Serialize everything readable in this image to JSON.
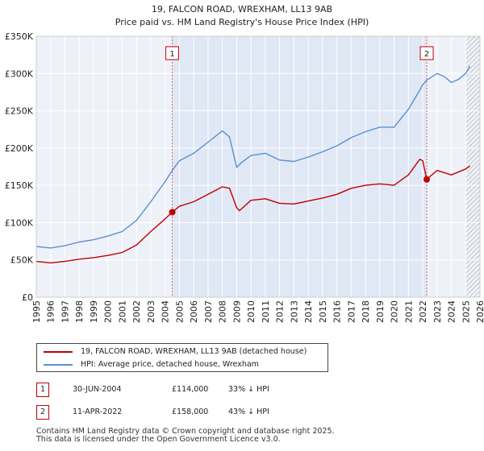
{
  "chart_data": {
    "type": "line",
    "title": "19, FALCON ROAD, WREXHAM, LL13 9AB",
    "subtitle": "Price paid vs. HM Land Registry's House Price Index (HPI)",
    "xlim": [
      1995,
      2026
    ],
    "ylim": [
      0,
      350000
    ],
    "x_ticks": [
      1995,
      1996,
      1997,
      1998,
      1999,
      2000,
      2001,
      2002,
      2003,
      2004,
      2005,
      2006,
      2007,
      2008,
      2009,
      2010,
      2011,
      2012,
      2013,
      2014,
      2015,
      2016,
      2017,
      2018,
      2019,
      2020,
      2021,
      2022,
      2023,
      2024,
      2025,
      2026
    ],
    "y_ticks": [
      {
        "value": 0,
        "label": "£0"
      },
      {
        "value": 50000,
        "label": "£50K"
      },
      {
        "value": 100000,
        "label": "£100K"
      },
      {
        "value": 150000,
        "label": "£150K"
      },
      {
        "value": 200000,
        "label": "£200K"
      },
      {
        "value": 250000,
        "label": "£250K"
      },
      {
        "value": 300000,
        "label": "£300K"
      },
      {
        "value": 350000,
        "label": "£350K"
      }
    ],
    "grid": true,
    "series": [
      {
        "name": "19, FALCON ROAD, WREXHAM, LL13 9AB (detached house)",
        "color": "#c00000",
        "points": [
          [
            1995.0,
            48000
          ],
          [
            1996.0,
            46000
          ],
          [
            1997.0,
            48000
          ],
          [
            1998.0,
            51000
          ],
          [
            1999.0,
            53000
          ],
          [
            2000.0,
            56000
          ],
          [
            2001.0,
            60000
          ],
          [
            2002.0,
            70000
          ],
          [
            2003.0,
            88000
          ],
          [
            2004.0,
            105000
          ],
          [
            2004.5,
            114000
          ],
          [
            2005.0,
            122000
          ],
          [
            2006.0,
            128000
          ],
          [
            2007.0,
            138000
          ],
          [
            2008.0,
            148000
          ],
          [
            2008.5,
            146000
          ],
          [
            2009.0,
            120000
          ],
          [
            2009.2,
            116000
          ],
          [
            2010.0,
            130000
          ],
          [
            2011.0,
            132000
          ],
          [
            2012.0,
            126000
          ],
          [
            2013.0,
            125000
          ],
          [
            2014.0,
            129000
          ],
          [
            2015.0,
            133000
          ],
          [
            2016.0,
            138000
          ],
          [
            2017.0,
            146000
          ],
          [
            2018.0,
            150000
          ],
          [
            2019.0,
            152000
          ],
          [
            2020.0,
            150000
          ],
          [
            2021.0,
            164000
          ],
          [
            2021.8,
            185000
          ],
          [
            2022.0,
            183000
          ],
          [
            2022.28,
            158000
          ],
          [
            2023.0,
            170000
          ],
          [
            2024.0,
            164000
          ],
          [
            2025.0,
            172000
          ],
          [
            2025.3,
            176000
          ]
        ]
      },
      {
        "name": "HPI: Average price, detached house, Wrexham",
        "color": "#5b8fd0",
        "points": [
          [
            1995.0,
            68000
          ],
          [
            1996.0,
            66000
          ],
          [
            1997.0,
            69000
          ],
          [
            1998.0,
            74000
          ],
          [
            1999.0,
            77000
          ],
          [
            2000.0,
            82000
          ],
          [
            2001.0,
            88000
          ],
          [
            2002.0,
            103000
          ],
          [
            2003.0,
            128000
          ],
          [
            2004.0,
            155000
          ],
          [
            2004.5,
            170000
          ],
          [
            2005.0,
            183000
          ],
          [
            2006.0,
            193000
          ],
          [
            2007.0,
            208000
          ],
          [
            2008.0,
            223000
          ],
          [
            2008.5,
            215000
          ],
          [
            2009.0,
            174000
          ],
          [
            2009.3,
            180000
          ],
          [
            2010.0,
            190000
          ],
          [
            2011.0,
            193000
          ],
          [
            2012.0,
            184000
          ],
          [
            2013.0,
            182000
          ],
          [
            2014.0,
            188000
          ],
          [
            2015.0,
            195000
          ],
          [
            2016.0,
            203000
          ],
          [
            2017.0,
            214000
          ],
          [
            2018.0,
            222000
          ],
          [
            2019.0,
            228000
          ],
          [
            2020.0,
            228000
          ],
          [
            2021.0,
            252000
          ],
          [
            2021.8,
            278000
          ],
          [
            2022.0,
            285000
          ],
          [
            2022.28,
            291000
          ],
          [
            2023.0,
            300000
          ],
          [
            2023.5,
            296000
          ],
          [
            2024.0,
            288000
          ],
          [
            2024.5,
            292000
          ],
          [
            2025.0,
            300000
          ],
          [
            2025.3,
            310000
          ]
        ]
      }
    ],
    "sales": [
      {
        "id": "1",
        "x": 2004.5,
        "value": 114000
      },
      {
        "id": "2",
        "x": 2022.28,
        "value": 158000
      }
    ],
    "shaded_region": [
      2004.5,
      2022.28
    ],
    "hatched_from": 2025.0
  },
  "legend": {
    "items": [
      {
        "label": "19, FALCON ROAD, WREXHAM, LL13 9AB (detached house)",
        "color": "#c00000"
      },
      {
        "label": "HPI: Average price, detached house, Wrexham",
        "color": "#5b8fd0"
      }
    ]
  },
  "transactions": [
    {
      "id": "1",
      "date": "30-JUN-2004",
      "price": "£114,000",
      "hpi": "33% ↓ HPI"
    },
    {
      "id": "2",
      "date": "11-APR-2022",
      "price": "£158,000",
      "hpi": "43% ↓ HPI"
    }
  ],
  "footer": {
    "line1": "Contains HM Land Registry data © Crown copyright and database right 2025.",
    "line2": "This data is licensed under the Open Government Licence v3.0."
  }
}
